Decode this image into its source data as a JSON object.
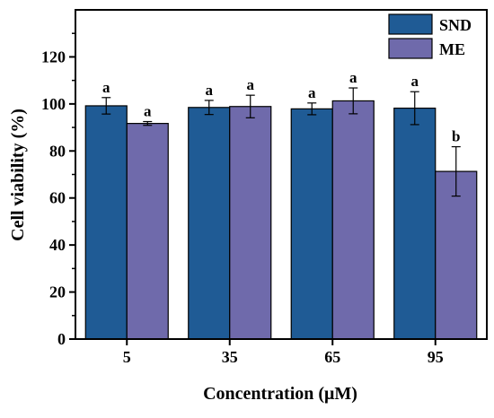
{
  "chart_data": {
    "type": "bar",
    "xlabel": "Concentration (μM)",
    "ylabel": "Cell viability (%)",
    "categories": [
      "5",
      "35",
      "65",
      "95"
    ],
    "ylim": [
      0,
      140
    ],
    "yticks": [
      0,
      20,
      40,
      60,
      80,
      100,
      120
    ],
    "grid": false,
    "legend_position": "top-right",
    "series": [
      {
        "name": "SND",
        "color": "#1f5b95",
        "values": [
          99.2,
          98.5,
          97.9,
          98.2
        ],
        "errors": [
          3.5,
          3.0,
          2.5,
          7.0
        ],
        "significance": [
          "a",
          "a",
          "a",
          "a"
        ]
      },
      {
        "name": "ME",
        "color": "#6f6aab",
        "values": [
          91.7,
          98.9,
          101.3,
          71.3
        ],
        "errors": [
          0.8,
          4.8,
          5.5,
          10.5
        ],
        "significance": [
          "a",
          "a",
          "a",
          "b"
        ]
      }
    ]
  }
}
